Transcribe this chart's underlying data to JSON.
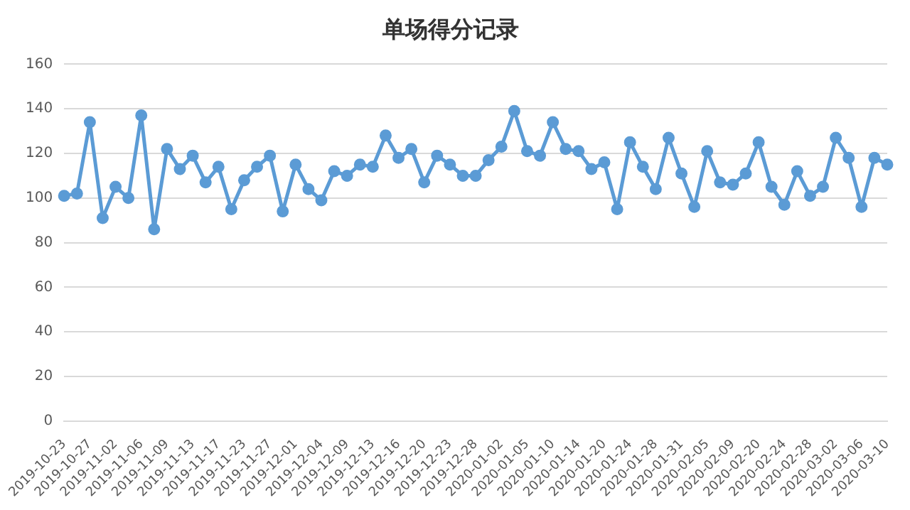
{
  "chart_data": {
    "type": "line",
    "title": "单场得分记录",
    "categories": [
      "2019-10-23",
      null,
      "2019-10-27",
      null,
      "2019-11-02",
      null,
      "2019-11-06",
      null,
      "2019-11-09",
      null,
      "2019-11-13",
      null,
      "2019-11-17",
      null,
      "2019-11-23",
      null,
      "2019-11-27",
      null,
      "2019-12-01",
      null,
      "2019-12-04",
      null,
      "2019-12-09",
      null,
      "2019-12-13",
      null,
      "2019-12-16",
      null,
      "2019-12-20",
      null,
      "2019-12-23",
      null,
      "2019-12-28",
      null,
      "2020-01-02",
      null,
      "2020-01-05",
      null,
      "2020-01-10",
      null,
      "2020-01-14",
      null,
      "2020-01-20",
      null,
      "2020-01-24",
      null,
      "2020-01-28",
      null,
      "2020-01-31",
      null,
      "2020-02-05",
      null,
      "2020-02-09",
      null,
      "2020-02-20",
      null,
      "2020-02-24",
      null,
      "2020-02-28",
      null,
      "2020-03-02",
      null,
      "2020-03-06",
      null,
      "2020-03-10"
    ],
    "series": [
      {
        "color": "#5b9bd5",
        "values": [
          101,
          102,
          134,
          91,
          105,
          100,
          137,
          86,
          122,
          113,
          119,
          107,
          114,
          95,
          108,
          114,
          119,
          94,
          115,
          104,
          99,
          112,
          110,
          115,
          114,
          128,
          118,
          122,
          107,
          119,
          115,
          110,
          110,
          117,
          123,
          139,
          121,
          119,
          134,
          122,
          121,
          113,
          116,
          95,
          125,
          114,
          104,
          127,
          111,
          96,
          121,
          107,
          106,
          111,
          125,
          105,
          97,
          112,
          101,
          105,
          127,
          118,
          96,
          118,
          115
        ]
      }
    ],
    "ylim": [
      0,
      160
    ],
    "yticks": [
      0,
      20,
      40,
      60,
      80,
      100,
      120,
      140,
      160
    ],
    "grid": "y",
    "legend": false,
    "marker": "circle",
    "line_style": "solid"
  }
}
